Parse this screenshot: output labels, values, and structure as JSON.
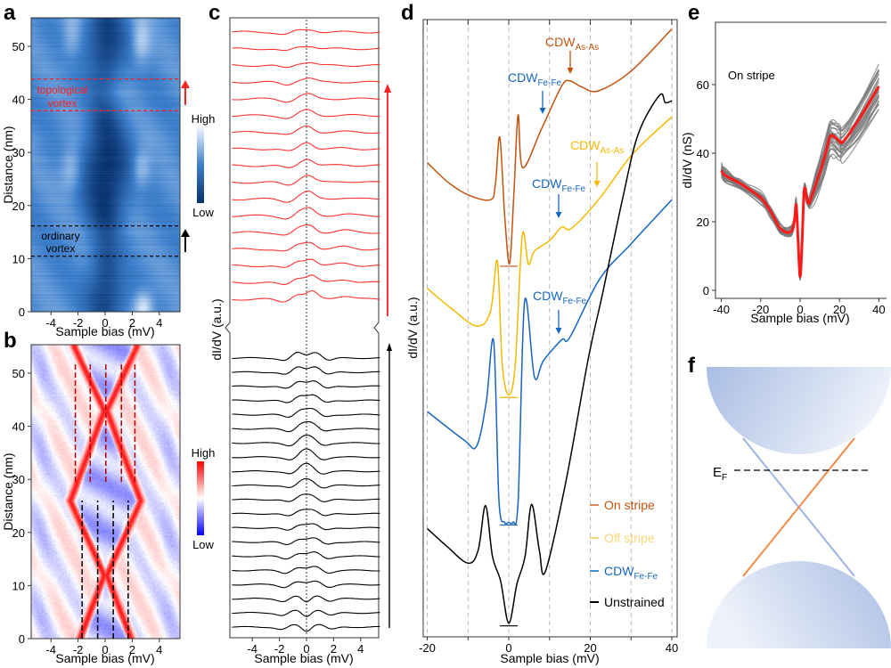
{
  "panel_labels": {
    "a": "a",
    "b": "b",
    "c": "c",
    "d": "d",
    "e": "e",
    "f": "f"
  },
  "chart_data": {
    "a": {
      "type": "heatmap",
      "xlabel": "Sample bias (mV)",
      "ylabel": "Distance (nm)",
      "xlim": [
        -5.5,
        5.5
      ],
      "ylim": [
        0,
        55
      ],
      "xticks": [
        -4,
        -2,
        0,
        2,
        4
      ],
      "yticks": [
        0,
        10,
        20,
        30,
        40,
        50
      ],
      "colorbar": {
        "high": "High",
        "low": "Low",
        "colors": [
          "#08306b",
          "#3d7fcc",
          "#eef6ff"
        ]
      },
      "regions": [
        {
          "lines": [
            "topological",
            "vortex"
          ],
          "y_from": 37.8,
          "y_to": 43.5,
          "color": "#ff2020"
        },
        {
          "lines": [
            "ordinary",
            "vortex"
          ],
          "y_from": 10.4,
          "y_to": 16.2,
          "color": "#000000"
        }
      ]
    },
    "b": {
      "type": "heatmap",
      "xlabel": "Sample bias (mV)",
      "ylabel": "Distance (nm)",
      "xlim": [
        -5.5,
        5.5
      ],
      "ylim": [
        0,
        55
      ],
      "xticks": [
        -4,
        -2,
        0,
        2,
        4
      ],
      "yticks": [
        0,
        10,
        20,
        30,
        40,
        50
      ],
      "colorbar": {
        "high": "High",
        "low": "Low",
        "colors": [
          "#0000ff",
          "#ffffff",
          "#ff0000"
        ]
      },
      "dashed_red_x": [
        -2.2,
        -1.1,
        0.05,
        1.2,
        2.2
      ],
      "dashed_red_y": [
        29.5,
        52
      ],
      "dashed_black_x": [
        -1.7,
        -0.55,
        0.6,
        1.7
      ],
      "dashed_black_y": [
        0,
        26
      ]
    },
    "c": {
      "type": "line",
      "xlabel": "Sample bias (mV)",
      "ylabel": "dI/dV (a.u.)",
      "xlim": [
        -5.5,
        5.5
      ],
      "xticks": [
        -4,
        -2,
        0,
        2,
        4
      ],
      "red_trace_count": 17,
      "black_trace_count": 20,
      "colors": {
        "topological": "#ff3030",
        "ordinary": "#000000"
      }
    },
    "d": {
      "type": "line",
      "xlabel": "Sample bias (mV)",
      "ylabel": "dI/dV (a.u.)",
      "xlim": [
        -20,
        40
      ],
      "xticks": [
        -20,
        0,
        20,
        40
      ],
      "grid": "vertical dashed every 10 mV",
      "legend_position": "bottom-right",
      "series": [
        {
          "name": "On stripe",
          "color": "#c4520f",
          "points": [
            [
              -20,
              76.6
            ],
            [
              -15,
              73.5
            ],
            [
              -10,
              71.4
            ],
            [
              -4.5,
              70.6
            ],
            [
              -3.3,
              73
            ],
            [
              -2.2,
              80.7
            ],
            [
              -1,
              68
            ],
            [
              0.2,
              60.3
            ],
            [
              1.3,
              72
            ],
            [
              2.3,
              84.3
            ],
            [
              3.4,
              75.8
            ],
            [
              8,
              82
            ],
            [
              13,
              89
            ],
            [
              15,
              89.8
            ],
            [
              18,
              88.8
            ],
            [
              22,
              88.2
            ],
            [
              30,
              91.4
            ],
            [
              40,
              98.2
            ]
          ]
        },
        {
          "name": "Off stripe",
          "color": "#f5b800",
          "points": [
            [
              -20,
              56.3
            ],
            [
              -14,
              53
            ],
            [
              -7.9,
              50.2
            ],
            [
              -4.5,
              52.5
            ],
            [
              -2.8,
              60.7
            ],
            [
              -1.6,
              44
            ],
            [
              0,
              39.1
            ],
            [
              1.6,
              44
            ],
            [
              3.3,
              64.8
            ],
            [
              4.8,
              60.2
            ],
            [
              6.3,
              62.3
            ],
            [
              10,
              64
            ],
            [
              13,
              66.2
            ],
            [
              15.4,
              66
            ],
            [
              22,
              70.6
            ],
            [
              30.4,
              78
            ],
            [
              40,
              84
            ]
          ]
        },
        {
          "name": "CDW",
          "name_sub": "Fe-Fe",
          "color": "#1565c0",
          "points": [
            [
              -20,
              36.4
            ],
            [
              -11,
              31.8
            ],
            [
              -7.9,
              30.8
            ],
            [
              -5.5,
              38
            ],
            [
              -3.7,
              47.7
            ],
            [
              -2.4,
              22
            ],
            [
              -1,
              18.5
            ],
            [
              0,
              18.5
            ],
            [
              1,
              18.5
            ],
            [
              2.3,
              21.9
            ],
            [
              3.9,
              54.2
            ],
            [
              6.3,
              42
            ],
            [
              8.5,
              44.6
            ],
            [
              13,
              48
            ],
            [
              15,
              48.4
            ],
            [
              22.3,
              57.8
            ],
            [
              30,
              63.5
            ],
            [
              40,
              70.6
            ]
          ]
        },
        {
          "name": "Unstrained",
          "color": "#000000",
          "points": [
            [
              -20,
              17.5
            ],
            [
              -15,
              14.5
            ],
            [
              -10,
              11.9
            ],
            [
              -7.5,
              14
            ],
            [
              -5.7,
              21.2
            ],
            [
              -4,
              13
            ],
            [
              -2,
              9
            ],
            [
              0,
              2.2
            ],
            [
              2,
              8.5
            ],
            [
              4,
              13
            ],
            [
              5.6,
              21.4
            ],
            [
              7.5,
              14
            ],
            [
              9,
              10.6
            ],
            [
              14,
              25
            ],
            [
              19.5,
              44.9
            ],
            [
              23,
              55.4
            ],
            [
              28,
              71
            ],
            [
              31.8,
              81.3
            ],
            [
              37,
              87.5
            ],
            [
              38.4,
              86.3
            ],
            [
              40,
              86.6
            ]
          ]
        }
      ],
      "annotations": [
        {
          "text": "CDW",
          "sub": "As-As",
          "color": "#c4520f",
          "at_mV": 15,
          "series": "On stripe"
        },
        {
          "text": "CDW",
          "sub": "Fe-Fe",
          "color": "#1565c0",
          "at_mV": 8.5,
          "series": "On stripe"
        },
        {
          "text": "CDW",
          "sub": "As-As",
          "color": "#f5b800",
          "at_mV": 21.5,
          "series": "Off stripe"
        },
        {
          "text": "CDW",
          "sub": "Fe-Fe",
          "color": "#1565c0",
          "at_mV": 12.4,
          "series": "Off stripe"
        },
        {
          "text": "CDW",
          "sub": "Fe-Fe",
          "color": "#1565c0",
          "at_mV": 12.4,
          "series": "CDW Fe-Fe"
        }
      ]
    },
    "e": {
      "type": "line",
      "label": "On stripe",
      "xlabel": "Sample bias (mV)",
      "ylabel": "dI/dV (nS)",
      "xlim": [
        -43,
        44
      ],
      "ylim": [
        -2,
        78
      ],
      "xticks": [
        -40,
        -20,
        0,
        20,
        40
      ],
      "yticks": [
        0,
        20,
        40,
        60
      ],
      "colors": {
        "average": "#ff1a1a",
        "individual": "#7a7a7a"
      },
      "average": [
        [
          -40,
          35
        ],
        [
          -38,
          33.5
        ],
        [
          -30,
          31
        ],
        [
          -20,
          27
        ],
        [
          -15,
          23
        ],
        [
          -10,
          18
        ],
        [
          -5,
          17
        ],
        [
          -3,
          20
        ],
        [
          -2,
          25
        ],
        [
          -1,
          14
        ],
        [
          0,
          4
        ],
        [
          1,
          14
        ],
        [
          2,
          29
        ],
        [
          3,
          28
        ],
        [
          4,
          25.5
        ],
        [
          5,
          26
        ],
        [
          8,
          31
        ],
        [
          12,
          38
        ],
        [
          15,
          44.5
        ],
        [
          17,
          45
        ],
        [
          20,
          43.5
        ],
        [
          22,
          43.5
        ],
        [
          30,
          50
        ],
        [
          40,
          59.5
        ]
      ]
    },
    "f": {
      "type": "diagram",
      "fermi_label": "E",
      "fermi_sub": "F",
      "colors": {
        "bands": "#9fb6e0",
        "cone_a": "#f08a4b",
        "cone_b": "#9db3e3"
      }
    }
  }
}
